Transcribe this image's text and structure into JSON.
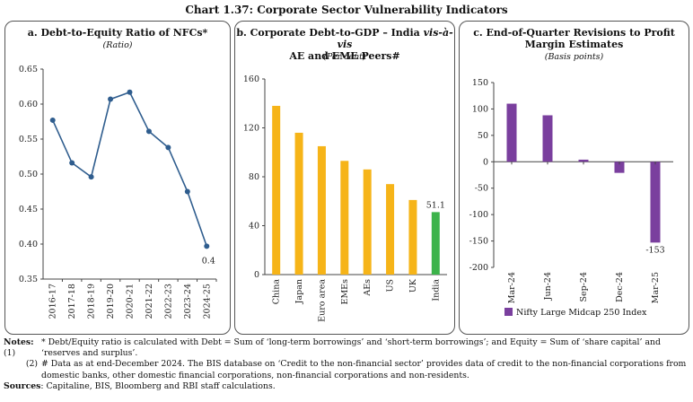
{
  "main_title": "Chart 1.37: Corporate Sector Vulnerability Indicators",
  "panels": {
    "a": {
      "title": "a. Debt-to-Equity Ratio of NFCs*",
      "subtitle": "(Ratio)",
      "last_label": "0.4"
    },
    "b": {
      "title_line1_pre": "b. Corporate Debt-to-GDP – India ",
      "title_line1_italic": "vis-à-vis",
      "title_line2": "AE and EME Peers#",
      "subtitle": "(Per cent)",
      "india_label": "51.1"
    },
    "c": {
      "title_line1": "c. End-of-Quarter Revisions to Profit",
      "title_line2": "Margin Estimates",
      "subtitle": "(Basis points)",
      "legend": "Nifty Large Midcap 250 Index",
      "min_label": "-153"
    }
  },
  "notes": {
    "label": "Notes:",
    "n1_num": "(1)",
    "n1": "* Debt/Equity ratio is calculated with Debt = Sum of ‘long-term borrowings’ and ‘short-term borrowings’; and Equity = Sum of ‘share capital’ and ‘reserves and surplus’.",
    "n2_num": "(2)",
    "n2": "# Data as at end-December 2024. The BIS database on ‘Credit to the non-financial sector’ provides data of credit to the non-financial corporations from domestic banks, other domestic financial corporations, non-financial corporations and non-residents.",
    "sources_label": "Sources",
    "sources": ": Capitaline, BIS, Bloomberg and RBI staff calculations."
  },
  "colors": {
    "line": "#2f5d8e",
    "bar_orange": "#f6b418",
    "bar_green": "#3bb34a",
    "bar_purple": "#7a3f9e",
    "label_green": "#3bb34a",
    "label_blue": "#2f5d8e"
  },
  "chart_data": [
    {
      "type": "line",
      "title": "a. Debt-to-Equity Ratio of NFCs*",
      "ylabel": "Ratio",
      "categories": [
        "2016-17",
        "2017-18",
        "2018-19",
        "2019-20",
        "2020-21",
        "2021-22",
        "2022-23",
        "2023-24",
        "2024-25"
      ],
      "values": [
        0.577,
        0.516,
        0.496,
        0.607,
        0.617,
        0.561,
        0.538,
        0.475,
        0.397
      ],
      "ylim": [
        0.35,
        0.65
      ],
      "yticks": [
        "0.35",
        "0.40",
        "0.45",
        "0.50",
        "0.55",
        "0.60",
        "0.65"
      ],
      "ytick_values": [
        0.35,
        0.4,
        0.45,
        0.5,
        0.55,
        0.6,
        0.65
      ]
    },
    {
      "type": "bar",
      "title": "b. Corporate Debt-to-GDP – India vis-à-vis AE and EME Peers#",
      "ylabel": "Per cent",
      "categories": [
        "China",
        "Japan",
        "Euro area",
        "EMEs",
        "AEs",
        "US",
        "UK",
        "India"
      ],
      "values": [
        138,
        116,
        105,
        93,
        86,
        74,
        61,
        51.1
      ],
      "ylim": [
        0,
        160
      ],
      "yticks": [
        "0",
        "40",
        "80",
        "120",
        "160"
      ],
      "ytick_values": [
        0,
        40,
        80,
        120,
        160
      ]
    },
    {
      "type": "bar",
      "title": "c. End-of-Quarter Revisions to Profit Margin Estimates",
      "ylabel": "Basis points",
      "series": [
        {
          "name": "Nifty Large Midcap 250 Index",
          "values": [
            110,
            88,
            4,
            -21,
            -153
          ]
        }
      ],
      "categories": [
        "Mar-24",
        "Jun-24",
        "Sep-24",
        "Dec-24",
        "Mar-25"
      ],
      "ylim": [
        -200,
        150
      ],
      "yticks": [
        "-200",
        "-150",
        "-100",
        "-50",
        "0",
        "50",
        "100",
        "150"
      ],
      "ytick_values": [
        -200,
        -150,
        -100,
        -50,
        0,
        50,
        100,
        150
      ]
    }
  ]
}
